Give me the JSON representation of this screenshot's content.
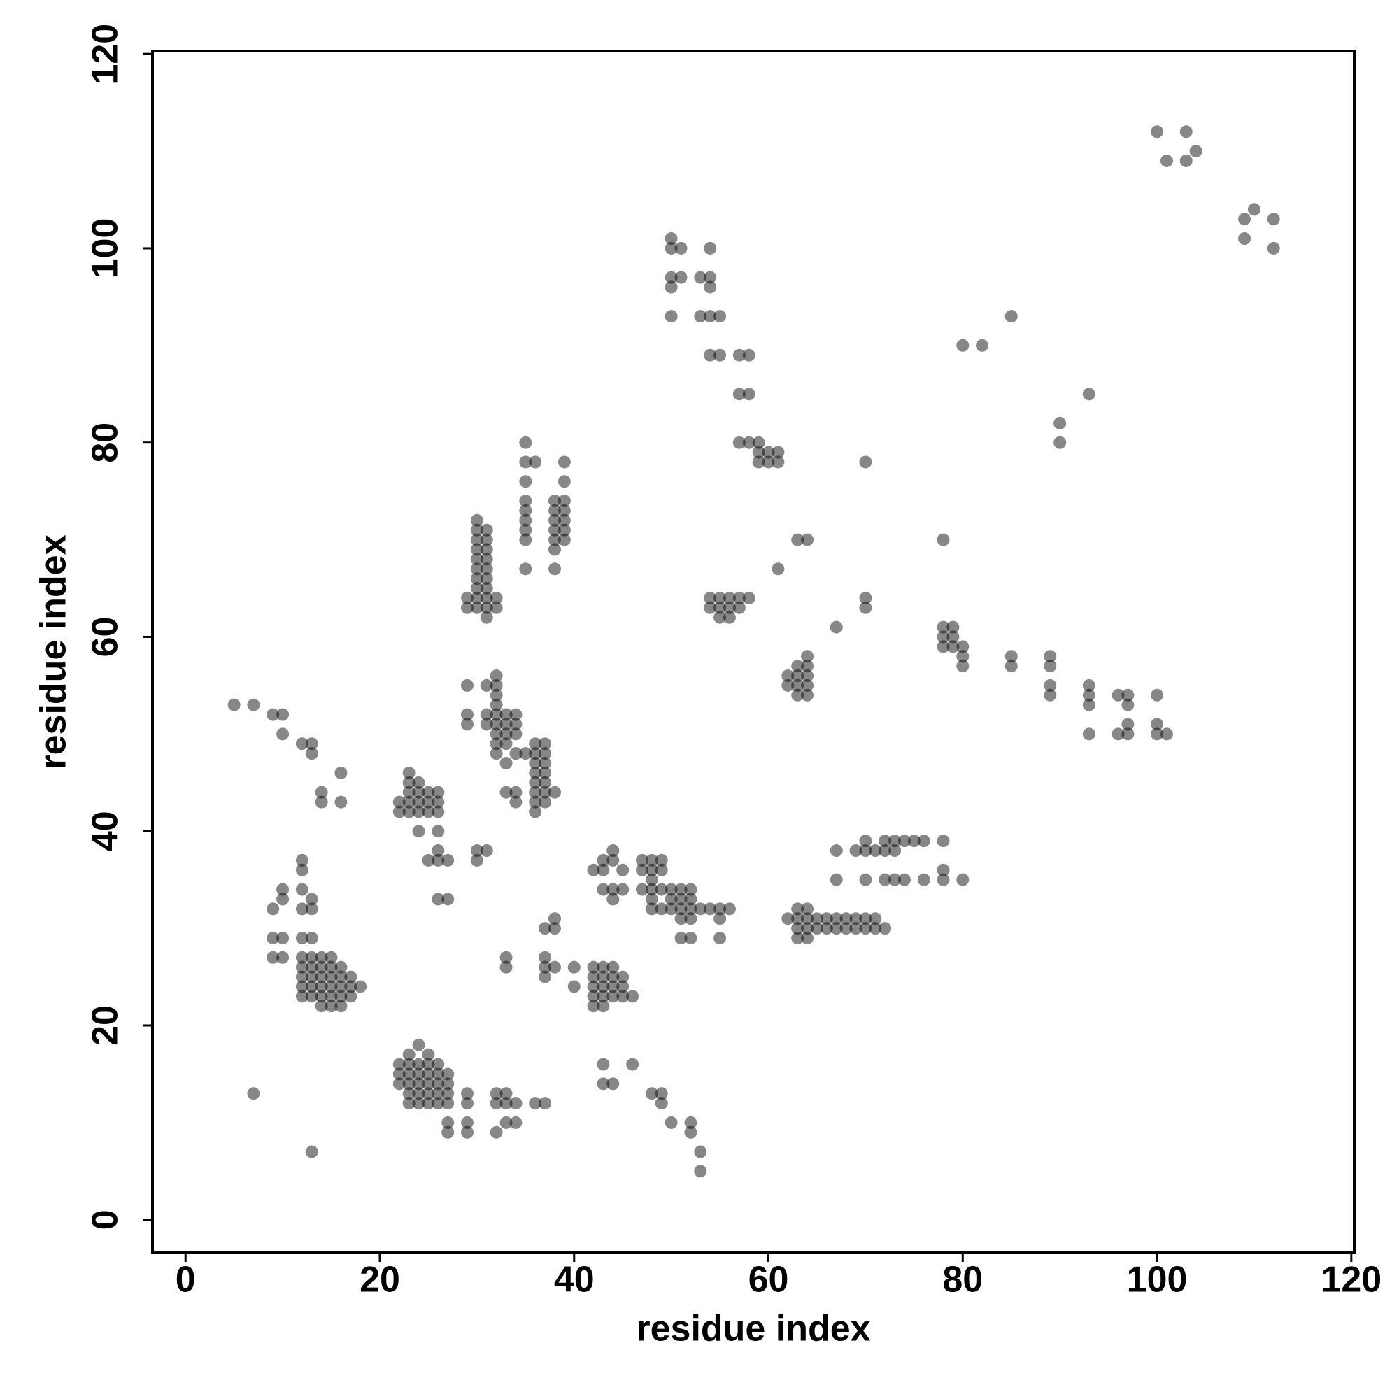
{
  "chart_data": {
    "type": "scatter",
    "x_label": "residue index",
    "y_label": "residue index",
    "xlim": [
      -3.4,
      120.3
    ],
    "ylim": [
      -3.4,
      120.3
    ],
    "xticks": [
      0,
      20,
      40,
      60,
      80,
      100,
      120
    ],
    "yticks": [
      0,
      20,
      40,
      60,
      80,
      100,
      120
    ],
    "color": "#000000",
    "alpha": 0.47,
    "x": [
      100,
      103,
      101,
      103,
      104,
      109,
      110,
      112,
      109,
      112,
      50,
      50,
      51,
      54,
      50,
      51,
      53,
      54,
      50,
      54,
      50,
      53,
      54,
      55,
      54,
      55,
      57,
      58,
      57,
      58,
      57,
      58,
      59,
      59,
      60,
      61,
      59,
      60,
      61,
      85,
      80,
      82,
      93,
      90,
      90,
      70,
      78,
      63,
      64,
      61,
      67,
      70,
      70,
      54,
      55,
      56,
      57,
      58,
      54,
      55,
      56,
      57,
      55,
      56,
      62,
      63,
      64,
      62,
      63,
      64,
      63,
      64,
      63,
      64,
      64,
      78,
      79,
      78,
      79,
      78,
      79,
      80,
      80,
      80,
      85,
      85,
      89,
      89,
      89,
      89,
      93,
      93,
      93,
      93,
      96,
      97,
      97,
      97,
      96,
      97,
      100,
      100,
      100,
      101,
      30,
      31,
      30,
      30,
      31,
      30,
      31,
      30,
      31,
      30,
      31,
      30,
      31,
      30,
      31,
      29,
      30,
      31,
      32,
      29,
      30,
      31,
      32,
      31,
      35,
      35,
      36,
      39,
      35,
      39,
      35,
      38,
      39,
      35,
      38,
      39,
      35,
      38,
      39,
      35,
      38,
      39,
      35,
      38,
      39,
      38,
      35,
      38,
      32,
      32,
      29,
      31,
      32,
      32,
      29,
      31,
      32,
      33,
      34,
      29,
      31,
      32,
      33,
      34,
      32,
      33,
      34,
      32,
      33,
      36,
      37,
      32,
      34,
      35,
      36,
      37,
      33,
      36,
      37,
      36,
      37,
      36,
      37,
      33,
      34,
      36,
      37,
      38,
      34,
      36,
      37,
      36,
      5,
      7,
      9,
      10,
      10,
      12,
      13,
      13,
      16,
      14,
      14,
      16,
      23,
      23,
      24,
      22,
      23,
      24,
      25,
      26,
      22,
      23,
      23,
      24,
      25,
      26,
      24,
      25,
      26,
      24,
      26,
      25,
      26,
      26,
      27,
      26,
      27,
      30,
      31,
      30,
      42,
      43,
      43,
      44,
      44,
      45,
      43,
      44,
      45,
      44,
      47,
      48,
      49,
      47,
      48,
      49,
      47,
      48,
      48,
      49,
      48,
      48,
      49,
      50,
      51,
      52,
      50,
      51,
      52,
      50,
      51,
      52,
      53,
      54,
      55,
      56,
      51,
      52,
      55,
      51,
      52,
      55,
      62,
      63,
      64,
      65,
      66,
      63,
      64,
      63,
      64,
      65,
      66,
      67,
      68,
      69,
      70,
      71,
      72,
      67,
      68,
      69,
      70,
      71,
      63,
      64,
      67,
      69,
      70,
      71,
      72,
      73,
      70,
      72,
      73,
      74,
      75,
      76,
      78,
      67,
      70,
      72,
      73,
      74,
      76,
      78,
      78,
      80,
      12,
      12,
      10,
      12,
      10,
      13,
      9,
      12,
      13,
      9,
      10,
      12,
      13,
      9,
      10,
      12,
      13,
      14,
      15,
      12,
      13,
      14,
      15,
      16,
      12,
      13,
      14,
      15,
      16,
      17,
      12,
      13,
      14,
      15,
      16,
      17,
      18,
      12,
      13,
      14,
      15,
      16,
      17,
      14,
      15,
      16,
      33,
      33,
      37,
      38,
      38,
      37,
      37,
      38,
      37,
      40,
      40,
      42,
      43,
      44,
      42,
      43,
      44,
      45,
      42,
      43,
      44,
      45,
      42,
      43,
      44,
      45,
      46,
      42,
      43,
      24,
      23,
      25,
      22,
      23,
      24,
      25,
      26,
      22,
      23,
      24,
      25,
      26,
      27,
      22,
      23,
      24,
      25,
      26,
      27,
      23,
      24,
      25,
      26,
      27,
      29,
      23,
      24,
      25,
      26,
      27,
      29,
      32,
      33,
      32,
      33,
      34,
      36,
      37,
      27,
      29,
      33,
      34,
      27,
      29,
      32,
      7,
      13,
      43,
      46,
      43,
      44,
      48,
      49,
      49,
      50,
      52,
      52,
      53,
      53
    ],
    "values": [
      112,
      112,
      109,
      109,
      110,
      103,
      104,
      103,
      101,
      100,
      101,
      100,
      100,
      100,
      97,
      97,
      97,
      97,
      96,
      96,
      93,
      93,
      93,
      93,
      89,
      89,
      89,
      89,
      85,
      85,
      80,
      80,
      80,
      79,
      79,
      79,
      78,
      78,
      78,
      93,
      90,
      90,
      85,
      82,
      80,
      78,
      70,
      70,
      70,
      67,
      61,
      64,
      63,
      64,
      64,
      64,
      64,
      64,
      63,
      63,
      63,
      63,
      62,
      62,
      56,
      56,
      56,
      55,
      55,
      55,
      54,
      54,
      57,
      57,
      58,
      61,
      61,
      60,
      60,
      59,
      59,
      59,
      58,
      57,
      58,
      57,
      58,
      57,
      55,
      54,
      55,
      54,
      53,
      50,
      54,
      54,
      53,
      51,
      50,
      50,
      54,
      51,
      50,
      50,
      72,
      71,
      71,
      70,
      70,
      69,
      69,
      68,
      68,
      67,
      67,
      66,
      66,
      65,
      65,
      64,
      64,
      64,
      64,
      63,
      63,
      63,
      63,
      62,
      80,
      78,
      78,
      78,
      76,
      76,
      74,
      74,
      74,
      73,
      73,
      73,
      72,
      72,
      72,
      71,
      71,
      71,
      70,
      70,
      70,
      69,
      67,
      67,
      56,
      55,
      55,
      55,
      54,
      53,
      52,
      52,
      52,
      52,
      52,
      51,
      51,
      51,
      51,
      51,
      50,
      50,
      50,
      49,
      49,
      49,
      49,
      48,
      48,
      48,
      48,
      48,
      47,
      47,
      47,
      46,
      46,
      45,
      45,
      44,
      44,
      44,
      44,
      44,
      43,
      43,
      43,
      42,
      53,
      53,
      52,
      52,
      50,
      49,
      49,
      48,
      46,
      44,
      43,
      43,
      46,
      45,
      45,
      43,
      44,
      44,
      44,
      44,
      42,
      42,
      43,
      43,
      43,
      43,
      42,
      42,
      42,
      40,
      40,
      37,
      38,
      37,
      37,
      33,
      33,
      38,
      38,
      37,
      36,
      36,
      37,
      37,
      38,
      36,
      34,
      34,
      34,
      33,
      37,
      37,
      37,
      36,
      36,
      36,
      34,
      34,
      35,
      34,
      33,
      32,
      32,
      34,
      34,
      34,
      33,
      33,
      33,
      32,
      32,
      32,
      32,
      32,
      32,
      32,
      31,
      31,
      31,
      29,
      29,
      29,
      31,
      31,
      31,
      31,
      31,
      32,
      32,
      30,
      30,
      30,
      30,
      30,
      30,
      30,
      30,
      30,
      30,
      31,
      31,
      31,
      31,
      31,
      29,
      29,
      38,
      38,
      38,
      38,
      38,
      38,
      39,
      39,
      39,
      39,
      39,
      39,
      39,
      35,
      35,
      35,
      35,
      35,
      35,
      36,
      35,
      35,
      37,
      36,
      34,
      34,
      33,
      33,
      32,
      32,
      32,
      29,
      29,
      29,
      29,
      27,
      27,
      27,
      27,
      27,
      27,
      26,
      26,
      26,
      26,
      26,
      25,
      25,
      25,
      25,
      25,
      25,
      24,
      24,
      24,
      24,
      24,
      24,
      24,
      23,
      23,
      23,
      23,
      23,
      23,
      22,
      22,
      22,
      27,
      26,
      30,
      31,
      30,
      27,
      26,
      26,
      25,
      26,
      24,
      26,
      26,
      26,
      25,
      25,
      25,
      25,
      24,
      24,
      24,
      24,
      23,
      23,
      23,
      23,
      23,
      22,
      22,
      18,
      17,
      17,
      16,
      16,
      16,
      16,
      16,
      15,
      15,
      15,
      15,
      15,
      15,
      14,
      14,
      14,
      14,
      14,
      14,
      13,
      13,
      13,
      13,
      13,
      13,
      12,
      12,
      12,
      12,
      12,
      12,
      13,
      13,
      12,
      12,
      12,
      12,
      12,
      10,
      10,
      10,
      10,
      9,
      9,
      9,
      13,
      7,
      16,
      16,
      14,
      14,
      13,
      13,
      12,
      10,
      10,
      9,
      7,
      5
    ]
  }
}
